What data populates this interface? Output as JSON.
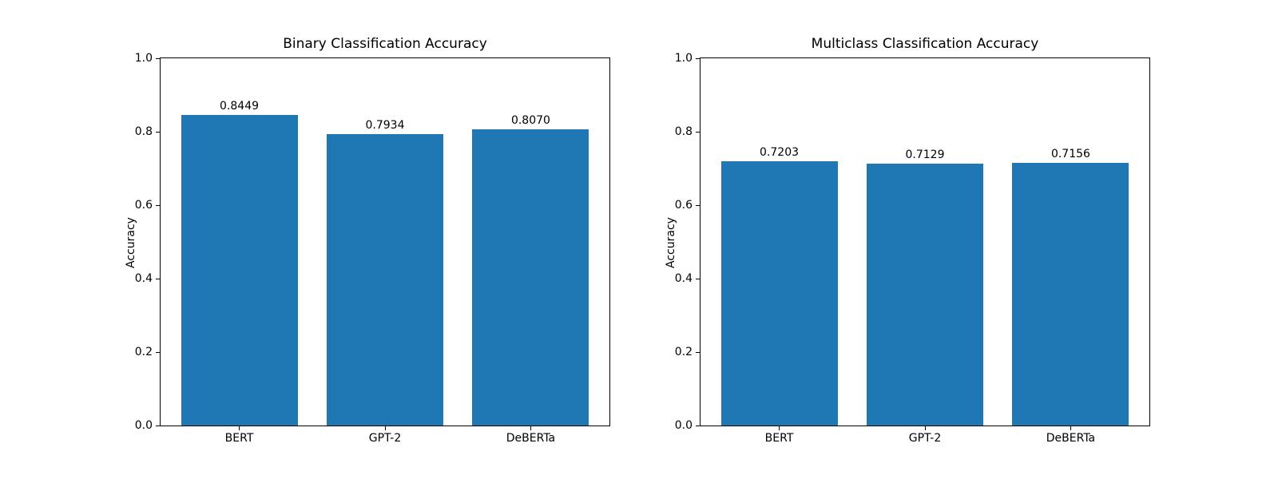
{
  "figure": {
    "background": "#ffffff",
    "text_color": "#000000"
  },
  "chart_data": [
    {
      "type": "bar",
      "title": "Binary Classification Accuracy",
      "xlabel": "",
      "ylabel": "Accuracy",
      "categories": [
        "BERT",
        "GPT-2",
        "DeBERTa"
      ],
      "values": [
        0.8449,
        0.7934,
        0.807
      ],
      "value_labels": [
        "0.8449",
        "0.7934",
        "0.8070"
      ],
      "positions": [
        0,
        1,
        2
      ],
      "bar_width": 0.8,
      "bar_color": "#1f77b4",
      "xlim": [
        -0.54,
        2.54
      ],
      "ylim": [
        0.0,
        1.0
      ],
      "yticks": [
        0.0,
        0.2,
        0.4,
        0.6,
        0.8,
        1.0
      ],
      "ytick_labels": [
        "0.0",
        "0.2",
        "0.4",
        "0.6",
        "0.8",
        "1.0"
      ],
      "grid": false,
      "legend": null
    },
    {
      "type": "bar",
      "title": "Multiclass Classification Accuracy",
      "xlabel": "",
      "ylabel": "Accuracy",
      "categories": [
        "BERT",
        "GPT-2",
        "DeBERTa"
      ],
      "values": [
        0.7203,
        0.7129,
        0.7156
      ],
      "value_labels": [
        "0.7203",
        "0.7129",
        "0.7156"
      ],
      "positions": [
        0,
        1,
        2
      ],
      "bar_width": 0.8,
      "bar_color": "#1f77b4",
      "xlim": [
        -0.54,
        2.54
      ],
      "ylim": [
        0.0,
        1.0
      ],
      "yticks": [
        0.0,
        0.2,
        0.4,
        0.6,
        0.8,
        1.0
      ],
      "ytick_labels": [
        "0.0",
        "0.2",
        "0.4",
        "0.6",
        "0.8",
        "1.0"
      ],
      "grid": false,
      "legend": null
    }
  ]
}
